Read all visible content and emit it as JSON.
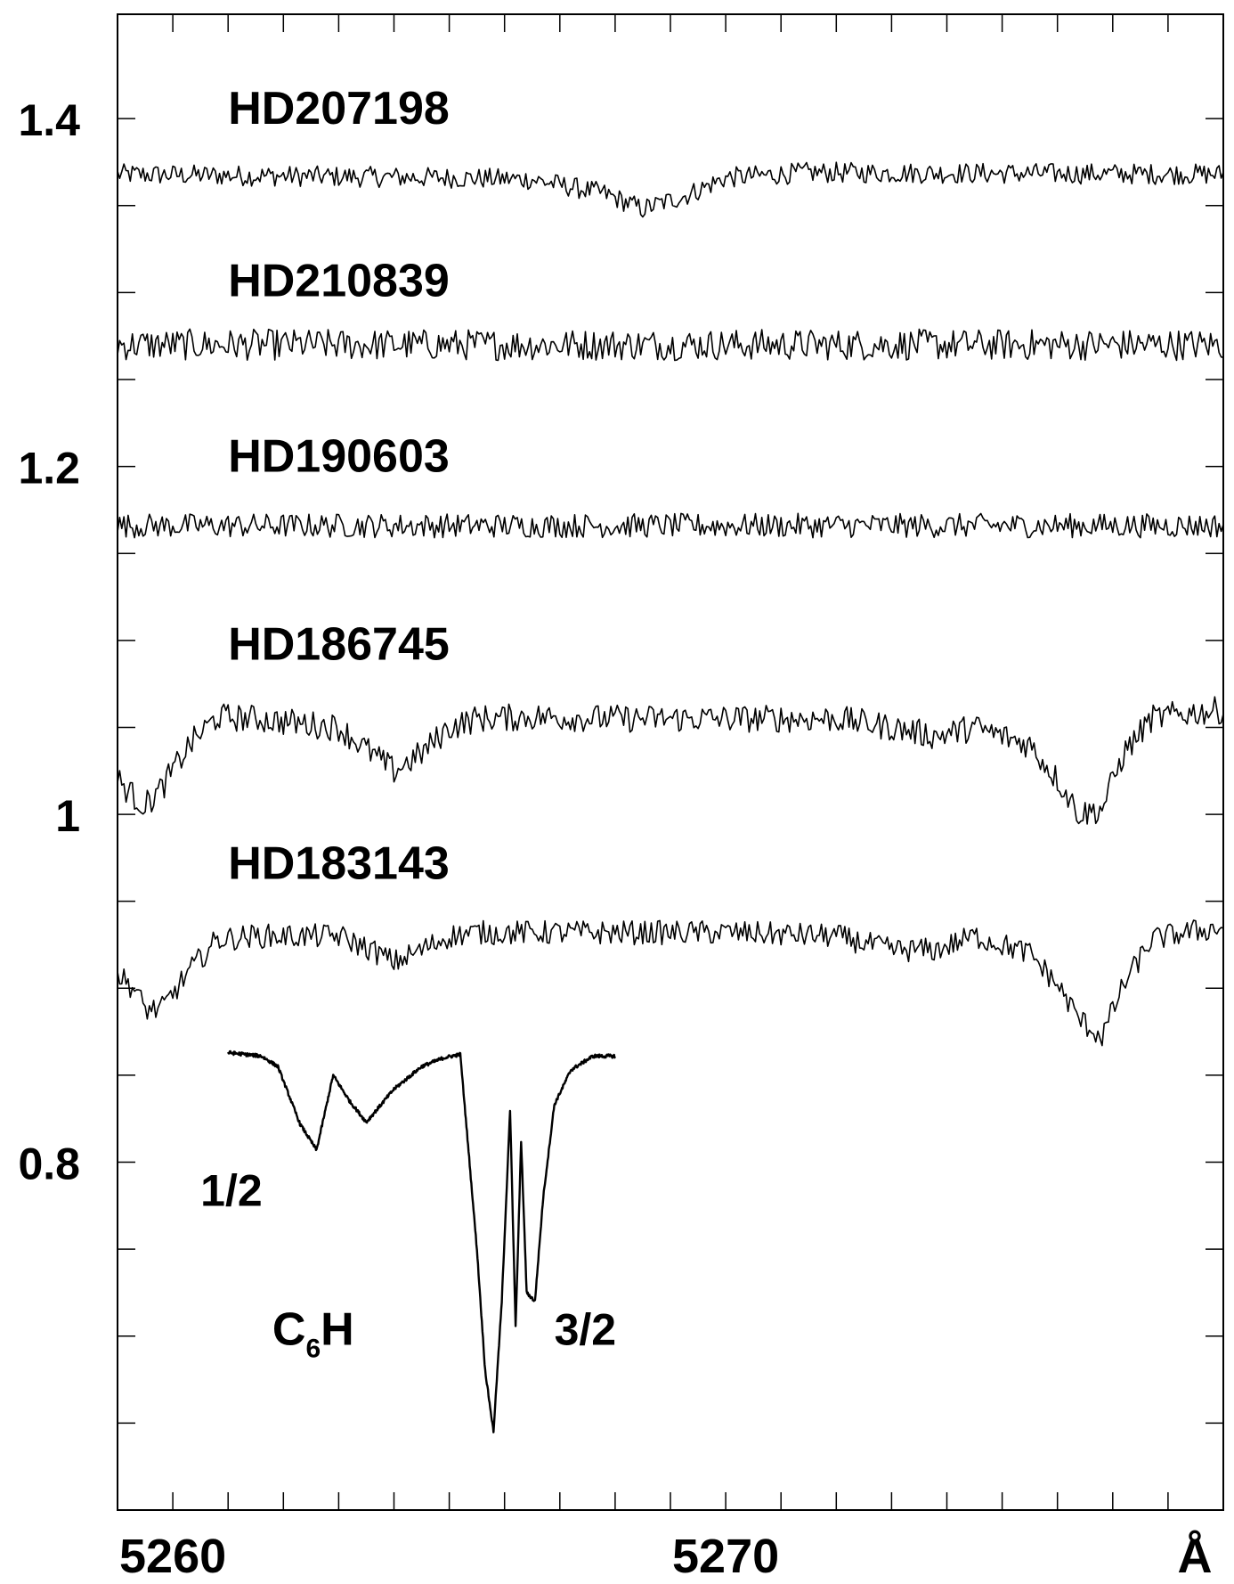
{
  "chart_data": {
    "type": "line",
    "xlabel": "",
    "ylabel": "",
    "xlim": [
      5259.0,
      5279.0
    ],
    "ylim": [
      0.6,
      1.46
    ],
    "unit_label": "Å",
    "x_ticks": [
      {
        "value": 5260,
        "label": "5260"
      },
      {
        "value": 5270,
        "label": "5270"
      }
    ],
    "x_minor_ticks": [
      5261,
      5262,
      5263,
      5264,
      5265,
      5266,
      5267,
      5268,
      5269,
      5271,
      5272,
      5273,
      5274,
      5275,
      5276,
      5277,
      5278
    ],
    "y_ticks": [
      {
        "value": 0.8,
        "label": "0.8"
      },
      {
        "value": 1.0,
        "label": "1"
      },
      {
        "value": 1.2,
        "label": "1.2"
      },
      {
        "value": 1.4,
        "label": "1.4"
      }
    ],
    "y_minor_ticks": [
      0.65,
      0.7,
      0.75,
      0.85,
      0.9,
      0.95,
      1.05,
      1.1,
      1.15,
      1.25,
      1.3,
      1.35
    ],
    "noise": {
      "HD207198": 0.006,
      "HD210839": 0.009,
      "HD190603": 0.007,
      "HD186745": 0.008,
      "HD183143": 0.007,
      "C6H": 0.001
    },
    "series": [
      {
        "name": "HD207198",
        "label": "HD207198",
        "label_pos": [
          5261.0,
          1.397
        ],
        "x": [
          5259,
          5265,
          5266.5,
          5267.8,
          5268.5,
          5269.3,
          5270.0,
          5271.5,
          5279
        ],
        "y": [
          1.368,
          1.366,
          1.365,
          1.357,
          1.348,
          1.356,
          1.366,
          1.369,
          1.368
        ]
      },
      {
        "name": "HD210839",
        "label": "HD210839",
        "label_pos": [
          5261.0,
          1.298
        ],
        "x": [
          5259,
          5279
        ],
        "y": [
          1.27,
          1.27
        ]
      },
      {
        "name": "HD190603",
        "label": "HD190603",
        "label_pos": [
          5261.0,
          1.197
        ],
        "x": [
          5259,
          5279
        ],
        "y": [
          1.166,
          1.166
        ]
      },
      {
        "name": "HD186745",
        "label": "HD186745",
        "label_pos": [
          5261.0,
          1.089
        ],
        "x": [
          5259,
          5259.3,
          5259.5,
          5259.8,
          5260.3,
          5260.8,
          5261.5,
          5263.0,
          5263.6,
          5264.0,
          5264.5,
          5265.0,
          5265.5,
          5266.5,
          5268.0,
          5270.0,
          5272.0,
          5273.0,
          5273.8,
          5274.5,
          5275.5,
          5276.0,
          5276.4,
          5276.8,
          5277.2,
          5277.7,
          5278.3,
          5279.0
        ],
        "y": [
          1.02,
          1.01,
          1.005,
          1.015,
          1.04,
          1.056,
          1.055,
          1.05,
          1.035,
          1.025,
          1.035,
          1.05,
          1.055,
          1.056,
          1.055,
          1.055,
          1.055,
          1.05,
          1.045,
          1.05,
          1.04,
          1.02,
          1.0,
          1.003,
          1.035,
          1.055,
          1.058,
          1.06
        ]
      },
      {
        "name": "HD183143",
        "label": "HD183143",
        "label_pos": [
          5261.0,
          0.963
        ],
        "x": [
          5259,
          5259.3,
          5259.5,
          5259.8,
          5260.3,
          5260.8,
          5261.5,
          5263.0,
          5263.6,
          5264.0,
          5264.5,
          5265.0,
          5265.5,
          5266.5,
          5268.0,
          5270.0,
          5272.0,
          5273.0,
          5273.8,
          5274.5,
          5275.5,
          5276.0,
          5276.4,
          5276.8,
          5277.2,
          5277.7,
          5278.3,
          5279.0
        ],
        "y": [
          0.908,
          0.9,
          0.888,
          0.888,
          0.91,
          0.928,
          0.93,
          0.93,
          0.922,
          0.915,
          0.922,
          0.93,
          0.932,
          0.932,
          0.932,
          0.932,
          0.93,
          0.922,
          0.922,
          0.93,
          0.92,
          0.902,
          0.882,
          0.872,
          0.902,
          0.928,
          0.932,
          0.935
        ]
      },
      {
        "name": "C6H",
        "label": "C",
        "label_sub": "6",
        "label_suffix": "H",
        "label_pos": [
          5261.8,
          0.695
        ],
        "x": [
          5261.0,
          5261.6,
          5261.9,
          5262.3,
          5262.6,
          5262.9,
          5263.2,
          5263.5,
          5264.0,
          5264.5,
          5264.9,
          5265.2,
          5265.5,
          5265.65,
          5265.8,
          5265.95,
          5266.1,
          5266.2,
          5266.3,
          5266.4,
          5266.55,
          5266.7,
          5266.9,
          5267.2,
          5267.6,
          5268.0
        ],
        "y": [
          0.863,
          0.861,
          0.855,
          0.822,
          0.807,
          0.85,
          0.835,
          0.823,
          0.842,
          0.855,
          0.86,
          0.862,
          0.75,
          0.68,
          0.645,
          0.72,
          0.83,
          0.705,
          0.812,
          0.725,
          0.72,
          0.78,
          0.833,
          0.853,
          0.861,
          0.861
        ]
      }
    ],
    "annotations": [
      {
        "text": "1/2",
        "x": 5260.5,
        "y": 0.775
      },
      {
        "text": "3/2",
        "x": 5266.9,
        "y": 0.695
      }
    ]
  }
}
